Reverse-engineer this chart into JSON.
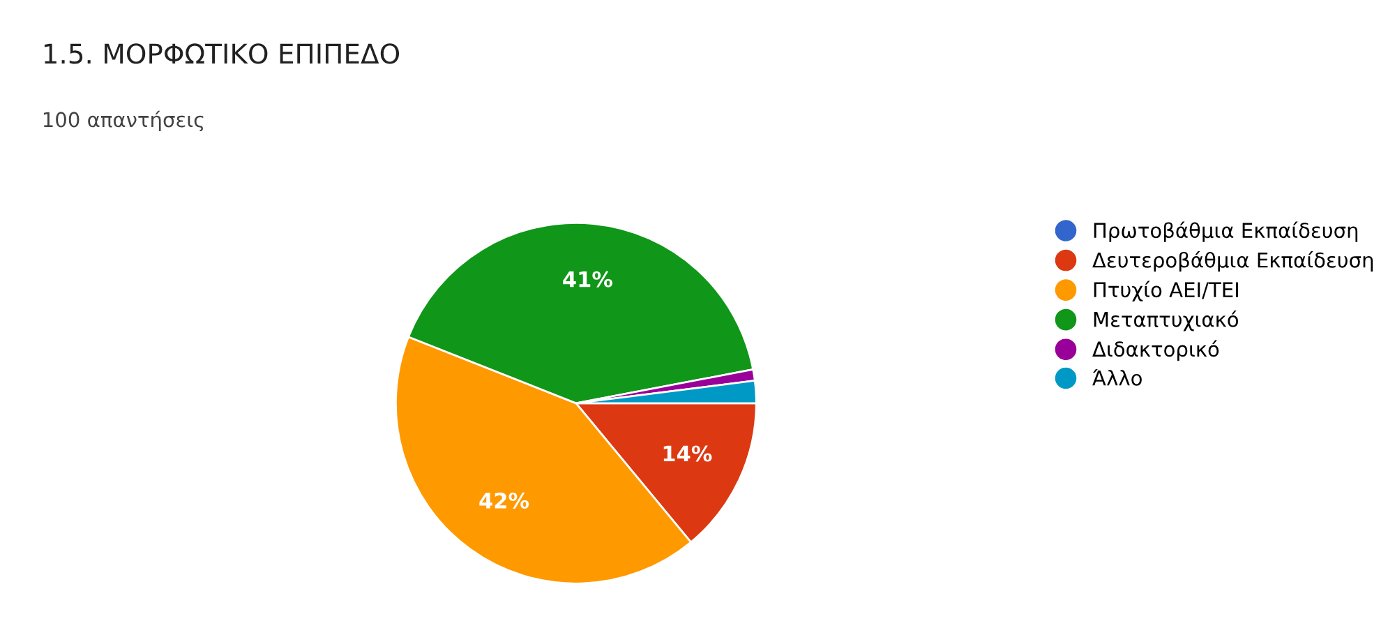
{
  "chart_data": {
    "type": "pie",
    "title": "1.5. ΜΟΡΦΩΤΙΚΟ ΕΠΙΠΕΔΟ",
    "subtitle": "100 απαντήσεις",
    "categories": [
      "Πρωτοβάθμια Εκπαίδευση",
      "Δευτεροβάθμια Εκπαίδευση",
      "Πτυχίο ΑΕΙ/ΤΕΙ",
      "Μεταπτυχιακό",
      "Διδακτορικό",
      "Άλλο"
    ],
    "values": [
      0,
      14,
      42,
      41,
      1,
      2
    ],
    "colors": [
      "#3366cc",
      "#dc3912",
      "#ff9900",
      "#109618",
      "#990099",
      "#0099c6"
    ],
    "value_labels": [
      null,
      "14%",
      "42%",
      "41%",
      null,
      null
    ],
    "legend": "right"
  }
}
